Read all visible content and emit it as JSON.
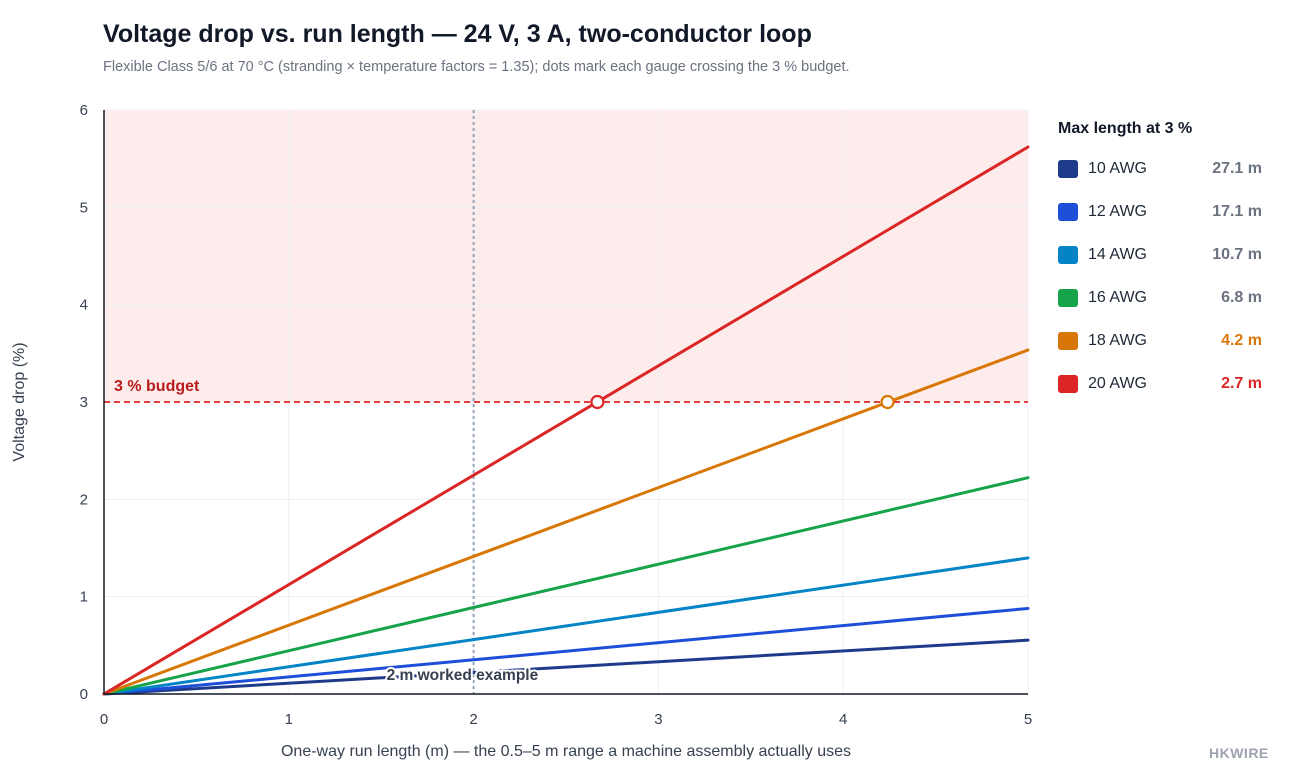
{
  "header": {
    "title": "Voltage drop vs. run length — 24 V, 3 A, two-conductor loop",
    "subtitle": "Flexible Class 5/6 at 70 °C (stranding × temperature factors = 1.35); dots mark each gauge crossing the 3 % budget."
  },
  "brand": "HKWIRE",
  "legend": {
    "title": "Max length at 3 %",
    "items": [
      {
        "label": "10 AWG",
        "value": "27.1 m",
        "color": "#1e3a8a",
        "value_color": "#6b7280"
      },
      {
        "label": "12 AWG",
        "value": "17.1 m",
        "color": "#1d4ed8",
        "value_color": "#6b7280"
      },
      {
        "label": "14 AWG",
        "value": "10.7 m",
        "color": "#0284c7",
        "value_color": "#6b7280"
      },
      {
        "label": "16 AWG",
        "value": "6.8 m",
        "color": "#16a34a",
        "value_color": "#6b7280"
      },
      {
        "label": "18 AWG",
        "value": "4.2 m",
        "color": "#d97706",
        "value_color": "#d97706"
      },
      {
        "label": "20 AWG",
        "value": "2.7 m",
        "color": "#dc2626",
        "value_color": "#dc2626"
      }
    ]
  },
  "chart_data": {
    "type": "line",
    "title": "Voltage drop vs. run length — 24 V, 3 A, two-conductor loop",
    "xlabel": "One-way run length (m) — the 0.5–5 m range a machine assembly actually uses",
    "ylabel": "Voltage drop (%)",
    "xlim": [
      0,
      5
    ],
    "ylim": [
      0,
      6
    ],
    "xticks": [
      "0",
      "1",
      "2",
      "3",
      "4",
      "5"
    ],
    "yticks": [
      "0",
      "1",
      "2",
      "3",
      "4",
      "5",
      "6"
    ],
    "grid": true,
    "legend_position": "right",
    "budget": {
      "value": 3,
      "label": "3 % budget",
      "color": "#dc2626",
      "shade_color": "#fdecec"
    },
    "reference_line": {
      "x": 2,
      "label": "2 m worked example"
    },
    "series": [
      {
        "name": "10 AWG",
        "color": "#1e3a8a",
        "x": [
          0,
          5
        ],
        "y": [
          0,
          0.553
        ]
      },
      {
        "name": "12 AWG",
        "color": "#1d4ed8",
        "x": [
          0,
          5
        ],
        "y": [
          0,
          0.879
        ]
      },
      {
        "name": "14 AWG",
        "color": "#0284c7",
        "x": [
          0,
          5
        ],
        "y": [
          0,
          1.398
        ]
      },
      {
        "name": "16 AWG",
        "color": "#16a34a",
        "x": [
          0,
          5
        ],
        "y": [
          0,
          2.222
        ]
      },
      {
        "name": "18 AWG",
        "color": "#d97706",
        "x": [
          0,
          5
        ],
        "y": [
          0,
          3.534
        ],
        "crossing_x": 4.24
      },
      {
        "name": "20 AWG",
        "color": "#dc2626",
        "x": [
          0,
          5
        ],
        "y": [
          0,
          5.62
        ],
        "crossing_x": 2.67
      }
    ]
  }
}
